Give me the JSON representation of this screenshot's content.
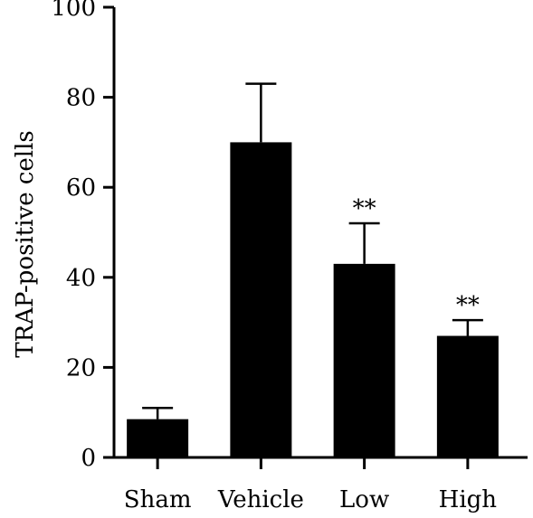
{
  "chart_data": {
    "type": "bar",
    "title": "",
    "xlabel": "",
    "ylabel": "TRAP-positive cells",
    "categories": [
      "Sham",
      "Vehicle",
      "Low",
      "High"
    ],
    "values": [
      8.5,
      70,
      43,
      27
    ],
    "error_upper": [
      11,
      83,
      52,
      30.5
    ],
    "annotations": [
      "",
      "",
      "**",
      "**"
    ],
    "ylim": [
      0,
      100
    ],
    "yticks": [
      0,
      20,
      40,
      60,
      80,
      100
    ],
    "grid": false,
    "legend": "none",
    "bar_color": "#000000"
  }
}
